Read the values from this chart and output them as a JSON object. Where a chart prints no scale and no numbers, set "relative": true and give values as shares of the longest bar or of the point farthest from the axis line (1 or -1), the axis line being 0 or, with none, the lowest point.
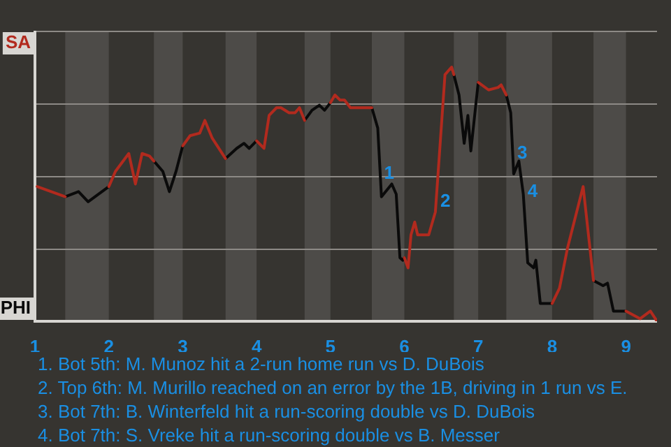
{
  "chart_data": {
    "type": "line",
    "relative": true,
    "grid": "y",
    "marker": "none",
    "line_style": "solid",
    "x": [
      1.03,
      1.41,
      1.59,
      1.72,
      2.0,
      2.09,
      2.27,
      2.36,
      2.45,
      2.55,
      2.61,
      2.73,
      2.82,
      2.91,
      3.0,
      3.1,
      3.23,
      3.3,
      3.4,
      3.58,
      3.73,
      3.83,
      3.9,
      4.0,
      4.1,
      4.17,
      4.27,
      4.33,
      4.44,
      4.52,
      4.58,
      4.65,
      4.75,
      4.85,
      4.92,
      5.0,
      5.06,
      5.13,
      5.19,
      5.27,
      5.56,
      5.64,
      5.69,
      5.83,
      5.89,
      5.94,
      5.98,
      6.0,
      6.05,
      6.09,
      6.14,
      6.18,
      6.33,
      6.42,
      6.55,
      6.64,
      6.67,
      6.74,
      6.81,
      6.86,
      6.9,
      7.0,
      7.14,
      7.27,
      7.31,
      7.38,
      7.44,
      7.48,
      7.55,
      7.61,
      7.67,
      7.75,
      7.78,
      7.84,
      8.0,
      8.1,
      8.21,
      8.42,
      8.56,
      8.69,
      8.75,
      8.83,
      9.0,
      9.19,
      9.33,
      9.42
    ],
    "xlim": [
      1,
      9.42
    ],
    "xticks": [
      1,
      2,
      3,
      4,
      5,
      6,
      7,
      8,
      9
    ],
    "series": [
      {
        "name": "SA",
        "color": "#b22a1e",
        "values": [
          0.53,
          0.49,
          null,
          null,
          0.53,
          0.59,
          0.66,
          0.54,
          0.66,
          0.65,
          0.63,
          null,
          null,
          null,
          0.69,
          0.73,
          0.74,
          0.79,
          0.72,
          0.64,
          null,
          null,
          null,
          0.71,
          0.68,
          0.81,
          0.84,
          0.84,
          0.82,
          0.82,
          0.84,
          0.79,
          null,
          null,
          null,
          0.86,
          0.89,
          0.87,
          0.87,
          0.84,
          0.84,
          null,
          null,
          null,
          null,
          null,
          null,
          0.25,
          0.21,
          0.34,
          0.39,
          0.34,
          0.34,
          0.43,
          0.97,
          1,
          0.97,
          null,
          null,
          null,
          null,
          0.94,
          0.91,
          0.92,
          0.93,
          0.89,
          null,
          null,
          null,
          null,
          null,
          null,
          null,
          null,
          0.07,
          0.13,
          0.29,
          0.53,
          0.16,
          null,
          null,
          null,
          0.04,
          0.01,
          0.04,
          0
        ]
      },
      {
        "name": "PHI",
        "color": "#0a0a0a",
        "values": [
          null,
          0.49,
          0.51,
          0.47,
          0.53,
          null,
          null,
          null,
          null,
          null,
          0.63,
          0.59,
          0.51,
          0.59,
          0.69,
          null,
          null,
          null,
          null,
          0.64,
          0.68,
          0.7,
          0.68,
          0.71,
          null,
          null,
          null,
          null,
          null,
          null,
          null,
          0.79,
          0.83,
          0.85,
          0.83,
          0.86,
          null,
          null,
          null,
          null,
          0.84,
          0.76,
          0.49,
          0.54,
          0.5,
          0.25,
          0.24,
          0.25,
          null,
          null,
          null,
          null,
          null,
          null,
          null,
          null,
          0.97,
          0.89,
          0.7,
          0.81,
          0.67,
          0.94,
          null,
          null,
          null,
          0.89,
          0.82,
          0.58,
          0.63,
          0.5,
          0.23,
          0.21,
          0.24,
          0.07,
          0.07,
          null,
          null,
          null,
          0.16,
          0.14,
          0.15,
          0.04,
          0.04,
          null,
          null,
          null
        ]
      }
    ],
    "bands": [
      {
        "axis": "x",
        "from": 1.41,
        "to": 2.0,
        "color": "#4d4b48"
      },
      {
        "axis": "x",
        "from": 2.61,
        "to": 3.0,
        "color": "#4d4b48"
      },
      {
        "axis": "x",
        "from": 3.58,
        "to": 4.0,
        "color": "#4d4b48"
      },
      {
        "axis": "x",
        "from": 4.65,
        "to": 5.0,
        "color": "#4d4b48"
      },
      {
        "axis": "x",
        "from": 5.56,
        "to": 6.0,
        "color": "#4d4b48"
      },
      {
        "axis": "x",
        "from": 6.67,
        "to": 7.0,
        "color": "#4d4b48"
      },
      {
        "axis": "x",
        "from": 7.38,
        "to": 8.0,
        "color": "#4d4b48"
      },
      {
        "axis": "x",
        "from": 8.56,
        "to": 9.0,
        "color": "#4d4b48"
      }
    ],
    "annotations": [
      {
        "text": "1",
        "x": 5.67,
        "y": 0.58
      },
      {
        "text": "2",
        "x": 6.43,
        "y": 0.47
      },
      {
        "text": "3",
        "x": 7.47,
        "y": 0.66
      },
      {
        "text": "4",
        "x": 7.61,
        "y": 0.51
      },
      "1. Bot 5th: M. Munoz hit a 2-run home run vs D. DuBois",
      "2. Top 6th: M. Murillo reached on an error by the 1B, driving in 1 run vs E.",
      "3. Bot 7th: B. Winterfeld hit a run-scoring double vs D. DuBois",
      "4. Bot 7th: S. Vreke hit a run-scoring double vs B. Messer"
    ]
  }
}
